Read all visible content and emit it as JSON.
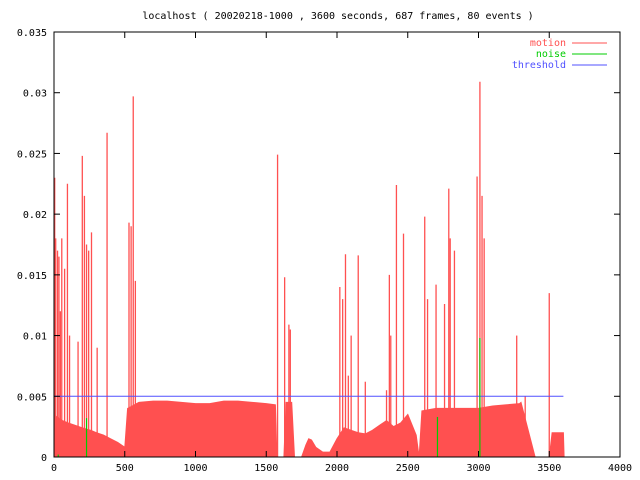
{
  "chart_data": {
    "type": "area",
    "title": "localhost ( 20020218-1000 , 3600 seconds, 687 frames, 80 events )",
    "xlabel": "",
    "ylabel": "",
    "xlim": [
      0,
      4000
    ],
    "ylim": [
      0,
      0.035
    ],
    "x_ticks": [
      "0",
      "500",
      "1000",
      "1500",
      "2000",
      "2500",
      "3000",
      "3500",
      "4000"
    ],
    "y_ticks": [
      "0",
      "0.005",
      "0.01",
      "0.015",
      "0.02",
      "0.025",
      "0.03",
      "0.035"
    ],
    "grid": false,
    "legend_position": "top-right",
    "series": [
      {
        "name": "motion",
        "color": "#ff5050",
        "baseline": [
          [
            0,
            0.0035
          ],
          [
            20,
            0.0033
          ],
          [
            60,
            0.003
          ],
          [
            100,
            0.0028
          ],
          [
            150,
            0.0026
          ],
          [
            200,
            0.0024
          ],
          [
            260,
            0.0022
          ],
          [
            300,
            0.002
          ],
          [
            350,
            0.0018
          ],
          [
            400,
            0.0015
          ],
          [
            450,
            0.0012
          ],
          [
            500,
            0.0008
          ],
          [
            520,
            0.004
          ],
          [
            600,
            0.0045
          ],
          [
            700,
            0.0046
          ],
          [
            800,
            0.0046
          ],
          [
            900,
            0.0045
          ],
          [
            1000,
            0.0044
          ],
          [
            1100,
            0.0044
          ],
          [
            1200,
            0.0046
          ],
          [
            1300,
            0.0046
          ],
          [
            1400,
            0.0045
          ],
          [
            1500,
            0.0044
          ],
          [
            1565,
            0.0043
          ],
          [
            1575,
            0.0
          ],
          [
            1625,
            0.0
          ],
          [
            1640,
            0.0045
          ],
          [
            1660,
            0.0045
          ],
          [
            1680,
            0.0045
          ],
          [
            1700,
            0.0
          ],
          [
            1750,
            0.0
          ],
          [
            1780,
            0.001
          ],
          [
            1800,
            0.0015
          ],
          [
            1820,
            0.0014
          ],
          [
            1850,
            0.0008
          ],
          [
            1900,
            0.0004
          ],
          [
            1950,
            0.0004
          ],
          [
            2000,
            0.0015
          ],
          [
            2050,
            0.0024
          ],
          [
            2100,
            0.0022
          ],
          [
            2150,
            0.002
          ],
          [
            2200,
            0.0019
          ],
          [
            2250,
            0.0022
          ],
          [
            2300,
            0.0026
          ],
          [
            2350,
            0.003
          ],
          [
            2400,
            0.0025
          ],
          [
            2450,
            0.0028
          ],
          [
            2500,
            0.0035
          ],
          [
            2560,
            0.0018
          ],
          [
            2580,
            0.0
          ],
          [
            2600,
            0.0038
          ],
          [
            2700,
            0.004
          ],
          [
            2800,
            0.004
          ],
          [
            2900,
            0.004
          ],
          [
            3000,
            0.004
          ],
          [
            3100,
            0.0042
          ],
          [
            3200,
            0.0043
          ],
          [
            3290,
            0.0044
          ],
          [
            3300,
            0.0045
          ],
          [
            3400,
            0.0
          ],
          [
            3500,
            0.0
          ],
          [
            3520,
            0.002
          ],
          [
            3600,
            0.002
          ],
          [
            3605,
            0.0
          ]
        ],
        "spikes": [
          [
            5,
            0.023
          ],
          [
            12,
            0.018
          ],
          [
            25,
            0.017
          ],
          [
            35,
            0.0165
          ],
          [
            45,
            0.012
          ],
          [
            55,
            0.018
          ],
          [
            75,
            0.0155
          ],
          [
            95,
            0.0225
          ],
          [
            110,
            0.01
          ],
          [
            170,
            0.0095
          ],
          [
            200,
            0.0248
          ],
          [
            215,
            0.0215
          ],
          [
            230,
            0.0175
          ],
          [
            245,
            0.017
          ],
          [
            265,
            0.0185
          ],
          [
            305,
            0.009
          ],
          [
            375,
            0.0267
          ],
          [
            530,
            0.0193
          ],
          [
            545,
            0.019
          ],
          [
            560,
            0.0297
          ],
          [
            575,
            0.0145
          ],
          [
            1580,
            0.0249
          ],
          [
            1630,
            0.0148
          ],
          [
            1660,
            0.0109
          ],
          [
            1670,
            0.0105
          ],
          [
            2020,
            0.014
          ],
          [
            2040,
            0.013
          ],
          [
            2060,
            0.0167
          ],
          [
            2080,
            0.0067
          ],
          [
            2100,
            0.01
          ],
          [
            2150,
            0.0166
          ],
          [
            2200,
            0.0062
          ],
          [
            2350,
            0.0055
          ],
          [
            2370,
            0.015
          ],
          [
            2380,
            0.01
          ],
          [
            2420,
            0.0224
          ],
          [
            2470,
            0.0184
          ],
          [
            2620,
            0.0198
          ],
          [
            2640,
            0.013
          ],
          [
            2700,
            0.0142
          ],
          [
            2760,
            0.0126
          ],
          [
            2790,
            0.0221
          ],
          [
            2800,
            0.018
          ],
          [
            2830,
            0.017
          ],
          [
            2990,
            0.0231
          ],
          [
            3010,
            0.0309
          ],
          [
            3025,
            0.0215
          ],
          [
            3040,
            0.018
          ],
          [
            3270,
            0.01
          ],
          [
            3330,
            0.005
          ],
          [
            3500,
            0.0135
          ]
        ]
      },
      {
        "name": "noise",
        "color": "#00cc00",
        "spikes": [
          [
            30,
            0.0002
          ],
          [
            230,
            0.0032
          ],
          [
            2710,
            0.0033
          ],
          [
            3010,
            0.0098
          ]
        ]
      },
      {
        "name": "threshold",
        "color": "#5050ff",
        "constant": 0.005,
        "x_range": [
          0,
          3600
        ]
      }
    ]
  }
}
